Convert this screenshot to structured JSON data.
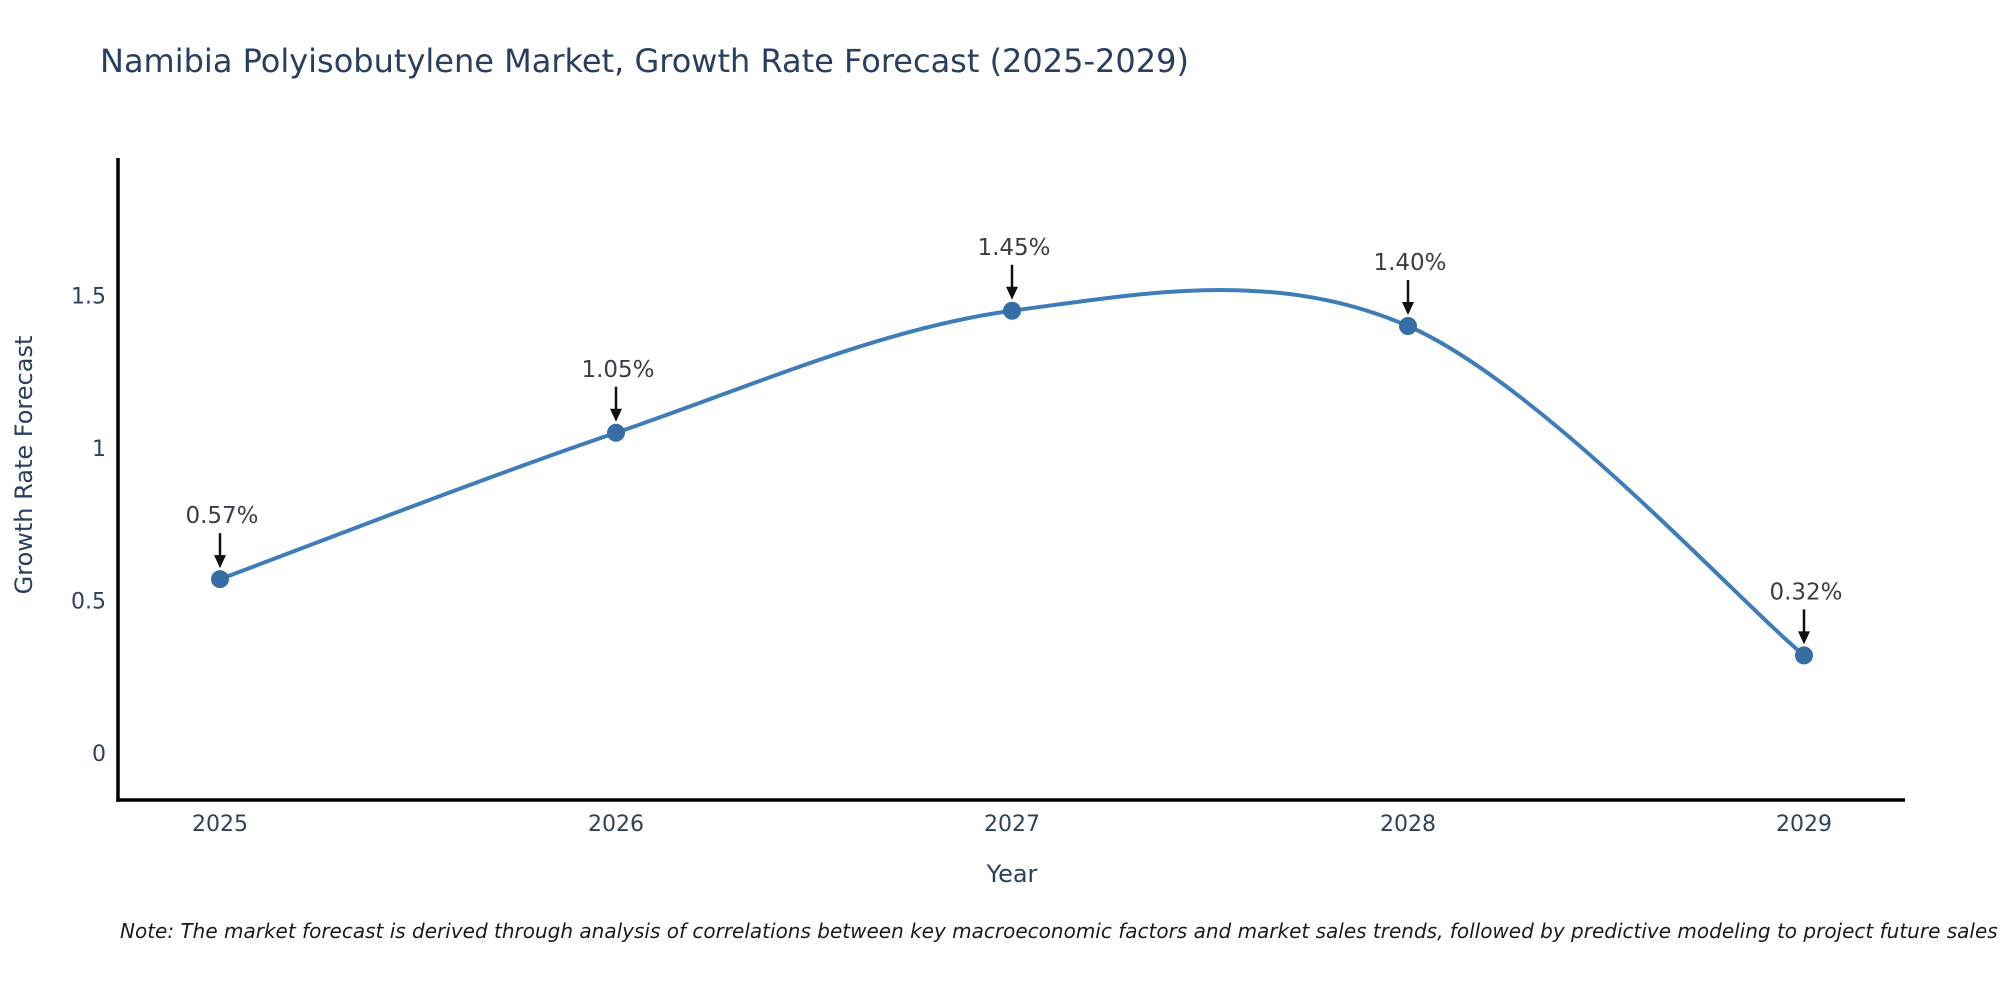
{
  "title": "Namibia Polyisobutylene Market, Growth Rate Forecast (2025-2029)",
  "note": "Note: The market forecast is derived through analysis of correlations between key macroeconomic factors and market sales trends, followed by predictive modeling to project future sales",
  "chart_data": {
    "type": "line",
    "line_shape": "spline",
    "title": "Namibia Polyisobutylene Market, Growth Rate Forecast (2025-2029)",
    "xlabel": "Year",
    "ylabel": "Growth Rate Forecast",
    "categories": [
      "2025",
      "2026",
      "2027",
      "2028",
      "2029"
    ],
    "values": [
      0.57,
      1.05,
      1.45,
      1.4,
      0.32
    ],
    "point_labels": [
      "0.57%",
      "1.05%",
      "1.45%",
      "1.40%",
      "0.32%"
    ],
    "yticks": {
      "values": [
        0,
        0.5,
        1,
        1.5
      ],
      "labels": [
        "0",
        "0.5",
        "1",
        "1.5"
      ]
    },
    "ylim": [
      -0.15,
      1.95
    ],
    "xlim_category_index": [
      -0.26,
      4.26
    ],
    "grid": false,
    "legend": "none",
    "markers": true,
    "annotations_arrows": true,
    "colors": {
      "line": "#3e7db9",
      "marker": "#356da4",
      "axis_line": "#000000",
      "title_text": "#2a3f5f",
      "tick_text": "#2f4258",
      "annotation_text": "#3a3f47",
      "annotation_arrow": "#111111",
      "note_text": "#1b1b1b",
      "background": "#ffffff"
    }
  }
}
